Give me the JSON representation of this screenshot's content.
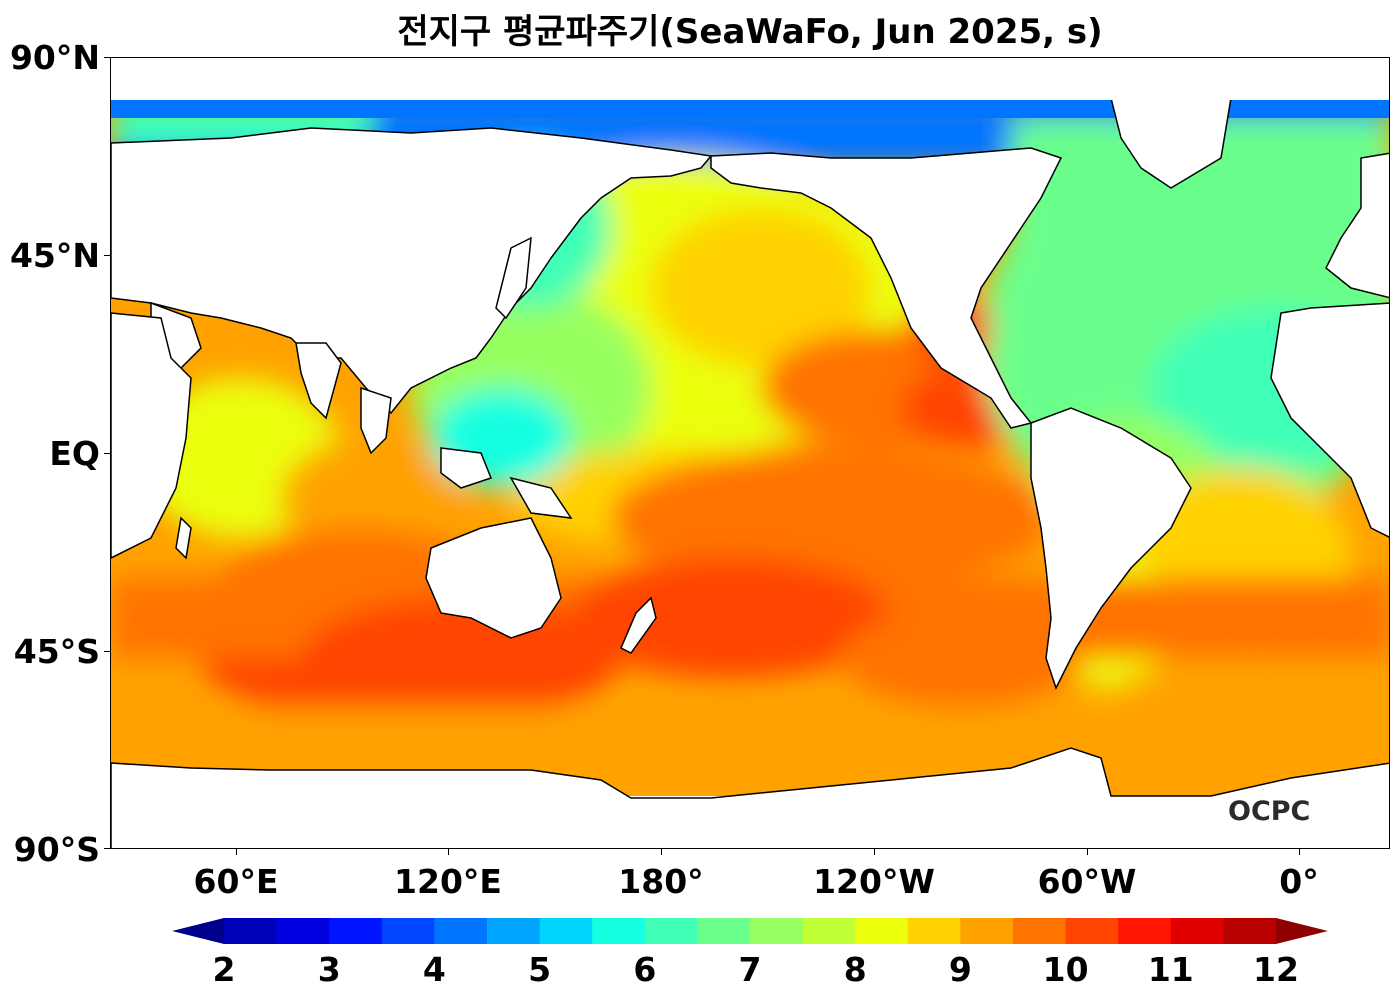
{
  "title": "전지구 평균파주기(SeaWaFo, Jun 2025, s)",
  "logo_text": "OCPC",
  "lat_labels": [
    "90°N",
    "45°N",
    "EQ",
    "45°S",
    "90°S"
  ],
  "lon_labels": [
    "60°E",
    "120°E",
    "180°",
    "120°W",
    "60°W",
    "0°"
  ],
  "colorbar": {
    "min": 2,
    "max": 12,
    "step": 0.5,
    "extend": "both",
    "tick_labels": [
      "2",
      "3",
      "4",
      "5",
      "6",
      "7",
      "8",
      "9",
      "10",
      "11",
      "12"
    ],
    "colors": [
      "#00008f",
      "#0000b8",
      "#0000e0",
      "#0015ff",
      "#0045ff",
      "#0075ff",
      "#00a5ff",
      "#00d5ff",
      "#16ffe1",
      "#41ffb6",
      "#6bff8c",
      "#96ff61",
      "#c1ff36",
      "#ebff0c",
      "#ffd200",
      "#ffa200",
      "#ff7300",
      "#ff4500",
      "#ff1500",
      "#e00000",
      "#b80000",
      "#8f0000"
    ]
  }
}
